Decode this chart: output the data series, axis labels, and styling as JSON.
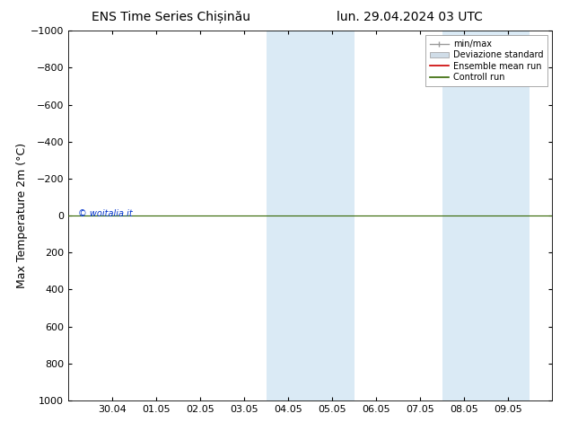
{
  "title_left": "ENS Time Series Chișinău",
  "title_right": "lun. 29.04.2024 03 UTC",
  "ylabel": "Max Temperature 2m (°C)",
  "watermark": "© woitalia.it",
  "ylim_top": -1000,
  "ylim_bottom": 1000,
  "yticks": [
    -1000,
    -800,
    -600,
    -400,
    -200,
    0,
    200,
    400,
    600,
    800,
    1000
  ],
  "xtick_labels": [
    "30.04",
    "01.05",
    "02.05",
    "03.05",
    "04.05",
    "05.05",
    "06.05",
    "07.05",
    "08.05",
    "09.05"
  ],
  "xtick_positions": [
    1,
    2,
    3,
    4,
    5,
    6,
    7,
    8,
    9,
    10
  ],
  "xlim": [
    0.0,
    11.0
  ],
  "shaded_x_numeric": [
    {
      "start": 4.5,
      "end": 6.5
    },
    {
      "start": 8.5,
      "end": 10.5
    }
  ],
  "shaded_color": "#daeaf5",
  "horizontal_line_color": "#336600",
  "ensemble_mean_color": "#cc0000",
  "minmax_color": "#999999",
  "std_fill_color": "#d0dde8",
  "std_edge_color": "#999999",
  "background_color": "#ffffff",
  "plot_bg_color": "#ffffff",
  "legend_items": [
    {
      "label": "min/max",
      "type": "errorbar"
    },
    {
      "label": "Deviazione standard",
      "type": "patch"
    },
    {
      "label": "Ensemble mean run",
      "type": "line_red"
    },
    {
      "label": "Controll run",
      "type": "line_green"
    }
  ],
  "title_fontsize": 10,
  "axis_label_fontsize": 9,
  "tick_fontsize": 8,
  "legend_fontsize": 7,
  "watermark_color": "#0033cc",
  "watermark_fontsize": 7,
  "control_run_y": 0,
  "line_y": 0
}
